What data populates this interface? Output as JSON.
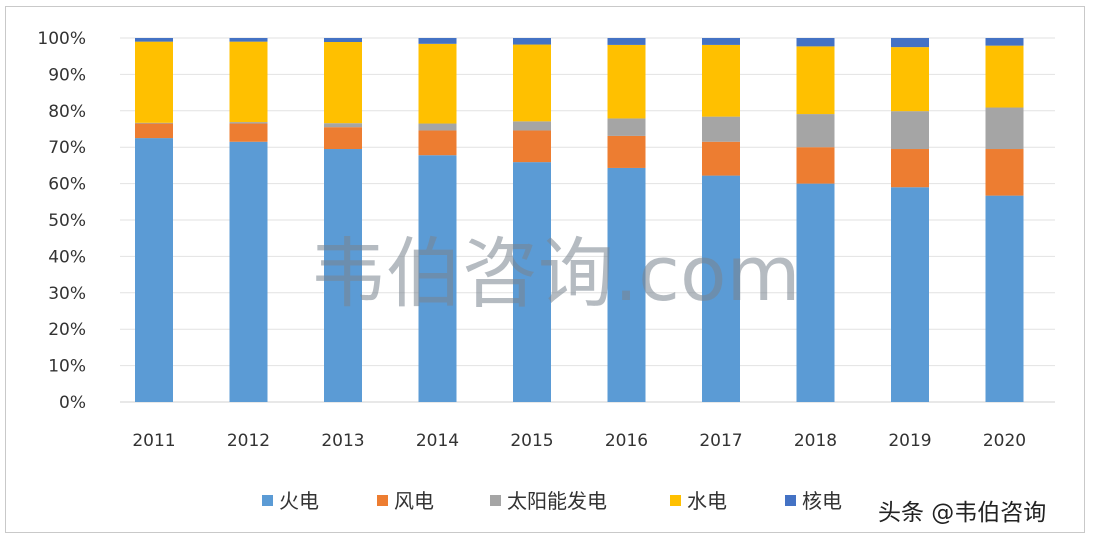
{
  "chart_data": {
    "type": "bar",
    "stacked": true,
    "percent": true,
    "categories": [
      "2011",
      "2012",
      "2013",
      "2014",
      "2015",
      "2016",
      "2017",
      "2018",
      "2019",
      "2020"
    ],
    "y_ticks": [
      "0%",
      "10%",
      "20%",
      "30%",
      "40%",
      "50%",
      "60%",
      "70%",
      "80%",
      "90%",
      "100%"
    ],
    "ylim": [
      0,
      100
    ],
    "grid": true,
    "legend_position": "bottom",
    "series": [
      {
        "name": "火电",
        "color": "#5b9bd5",
        "values": [
          72.5,
          71.5,
          69.5,
          67.8,
          65.9,
          64.3,
          62.2,
          60.0,
          59.0,
          56.7
        ]
      },
      {
        "name": "风电",
        "color": "#ed7d31",
        "values": [
          4.0,
          5.0,
          6.0,
          6.8,
          8.7,
          8.8,
          9.3,
          10.0,
          10.5,
          12.8
        ]
      },
      {
        "name": "太阳能发电",
        "color": "#a5a5a5",
        "values": [
          0.2,
          0.4,
          1.1,
          1.9,
          2.5,
          4.8,
          6.9,
          9.1,
          10.4,
          11.4
        ]
      },
      {
        "name": "水电",
        "color": "#ffc000",
        "values": [
          22.3,
          22.1,
          22.3,
          21.9,
          21.1,
          20.2,
          19.7,
          18.6,
          17.6,
          17.0
        ]
      },
      {
        "name": "核电",
        "color": "#4472c4",
        "values": [
          1.0,
          1.0,
          1.1,
          1.6,
          1.8,
          1.9,
          1.9,
          2.3,
          2.5,
          2.1
        ]
      }
    ]
  },
  "watermark": "韦伯咨询.com",
  "source_tag": "头条 @韦伯咨询"
}
